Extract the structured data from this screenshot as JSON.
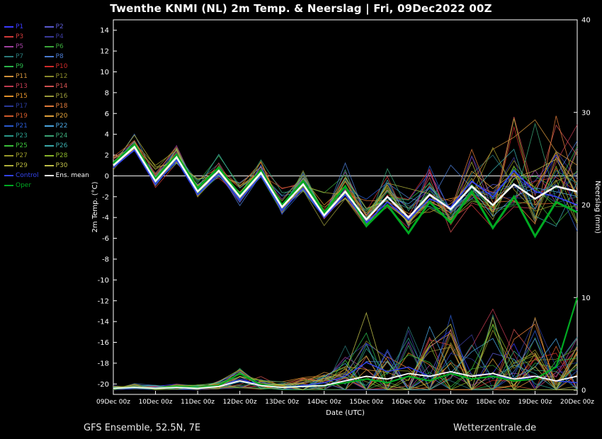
{
  "title": "Twenthe KNMI  (NL)  2m Temp. & Neerslag | Fri, 09Dec2022 00Z",
  "footer": {
    "left": "GFS Ensemble, 52.5N, 7E",
    "right": "Wetterzentrale.de"
  },
  "axes": {
    "temp_label": "2m Temp. (°C)",
    "precip_label": "Neerslag (mm)",
    "x_label": "Date (UTC)",
    "temp_ticks": [
      14,
      12,
      10,
      8,
      6,
      4,
      2,
      0,
      -2,
      -4,
      -6,
      -8,
      -10,
      -12,
      -14,
      -16,
      -18,
      -20
    ],
    "temp_range": [
      -21,
      15
    ],
    "precip_ticks": [
      40,
      30,
      20,
      10,
      0
    ],
    "precip_range": [
      0,
      40
    ],
    "x_tick_labels": [
      "09Dec 00z",
      "10Dec 00z",
      "11Dec 00z",
      "12Dec 00z",
      "13Dec 00z",
      "14Dec 00z",
      "15Dec 00z",
      "16Dec 00z",
      "17Dec 00z",
      "18Dec 00z",
      "19Dec 00z",
      "20Dec 00z"
    ],
    "zero_line_temp": 0
  },
  "legend": {
    "members": [
      {
        "label": "P1",
        "color": "#3a3aff"
      },
      {
        "label": "P2",
        "color": "#5a5ad0"
      },
      {
        "label": "P3",
        "color": "#d03a3a"
      },
      {
        "label": "P4",
        "color": "#3a3a9a"
      },
      {
        "label": "P5",
        "color": "#a040a0"
      },
      {
        "label": "P6",
        "color": "#3aa53a"
      },
      {
        "label": "P7",
        "color": "#2a7a7a"
      },
      {
        "label": "P8",
        "color": "#4a7ad0"
      },
      {
        "label": "P9",
        "color": "#2ab54a"
      },
      {
        "label": "P10",
        "color": "#d02a2a"
      },
      {
        "label": "P11",
        "color": "#d0903a"
      },
      {
        "label": "P12",
        "color": "#8a8a2a"
      },
      {
        "label": "P13",
        "color": "#c03a50"
      },
      {
        "label": "P14",
        "color": "#d05050"
      },
      {
        "label": "P15",
        "color": "#e0902a"
      },
      {
        "label": "P16",
        "color": "#9a9a3a"
      },
      {
        "label": "P17",
        "color": "#2a3a9a"
      },
      {
        "label": "P18",
        "color": "#e07a3a"
      },
      {
        "label": "P19",
        "color": "#d05a2a"
      },
      {
        "label": "P20",
        "color": "#e0a03a"
      },
      {
        "label": "P21",
        "color": "#2a5ad0"
      },
      {
        "label": "P22",
        "color": "#4aa5e0"
      },
      {
        "label": "P23",
        "color": "#2a9a8a"
      },
      {
        "label": "P24",
        "color": "#3aa575"
      },
      {
        "label": "P25",
        "color": "#3ac03a"
      },
      {
        "label": "P26",
        "color": "#3aaaaa"
      },
      {
        "label": "P27",
        "color": "#9a9a2a"
      },
      {
        "label": "P28",
        "color": "#8ab52a"
      },
      {
        "label": "P29",
        "color": "#b0b03a"
      },
      {
        "label": "P30",
        "color": "#c0c04a"
      }
    ],
    "control": {
      "label": "Control",
      "color": "#3344ee"
    },
    "ens_mean": {
      "label": "Ens. mean",
      "color": "#ffffff"
    },
    "oper": {
      "label": "Oper",
      "color": "#00aa22"
    }
  },
  "chart_data": {
    "type": "line",
    "title": "Twenthe KNMI (NL) 2m Temp. & Neerslag, GFS Ensemble run Fri 09Dec2022 00Z",
    "xlabel": "Date (UTC)",
    "ylabel_left": "2m Temp. (°C)",
    "ylabel_right": "Neerslag (mm)",
    "ylim_temp": [
      -20,
      14
    ],
    "ylim_precip": [
      0,
      40
    ],
    "x_times": [
      "09Dec 00z",
      "09Dec 12z",
      "10Dec 00z",
      "10Dec 12z",
      "11Dec 00z",
      "11Dec 12z",
      "12Dec 00z",
      "12Dec 12z",
      "13Dec 00z",
      "13Dec 12z",
      "14Dec 00z",
      "14Dec 12z",
      "15Dec 00z",
      "15Dec 12z",
      "16Dec 00z",
      "16Dec 12z",
      "17Dec 00z",
      "17Dec 12z",
      "18Dec 00z",
      "18Dec 12z",
      "19Dec 00z",
      "19Dec 12z",
      "20Dec 00z"
    ],
    "ens_mean_temp": [
      1.0,
      2.8,
      -0.5,
      1.8,
      -1.5,
      0.5,
      -2.0,
      0.3,
      -3.0,
      -0.8,
      -3.8,
      -1.5,
      -4.2,
      -2.0,
      -4.0,
      -1.8,
      -3.2,
      -1.0,
      -2.8,
      -0.8,
      -2.2,
      -1.0,
      -1.5
    ],
    "control_temp": [
      0.8,
      2.5,
      -0.8,
      1.5,
      -1.8,
      0.2,
      -2.3,
      0.0,
      -3.3,
      -1.2,
      -4.0,
      -1.8,
      -4.5,
      -2.5,
      -4.2,
      -2.2,
      -3.0,
      -0.5,
      -2.0,
      0.5,
      -1.5,
      -2.0,
      -2.8
    ],
    "oper_temp": [
      1.2,
      3.0,
      -0.3,
      2.0,
      -1.2,
      0.8,
      -1.8,
      0.5,
      -2.8,
      -0.5,
      -3.5,
      -1.0,
      -4.8,
      -2.8,
      -5.5,
      -2.5,
      -4.5,
      -1.5,
      -5.0,
      -2.0,
      -5.8,
      -2.5,
      -3.5
    ],
    "member_spread_temp": [
      0.8,
      0.8,
      1.0,
      1.0,
      1.2,
      1.2,
      1.3,
      1.3,
      1.5,
      1.5,
      1.6,
      1.7,
      1.8,
      2.0,
      2.5,
      2.8,
      3.2,
      3.5,
      4.0,
      4.5,
      5.5,
      6.0,
      6.5
    ],
    "ens_mean_precip": [
      0.2,
      0.3,
      0.2,
      0.3,
      0.2,
      0.4,
      1.0,
      0.5,
      0.3,
      0.4,
      0.5,
      1.0,
      1.5,
      1.2,
      1.8,
      1.5,
      2.0,
      1.5,
      1.8,
      1.2,
      1.5,
      1.0,
      1.5
    ],
    "control_precip": [
      0.2,
      0.2,
      0.3,
      0.3,
      0.2,
      0.4,
      1.2,
      0.5,
      0.3,
      0.5,
      0.8,
      1.5,
      3.0,
      2.0,
      2.5,
      1.5,
      2.0,
      1.5,
      1.8,
      1.0,
      1.5,
      1.0,
      0.8
    ],
    "oper_precip": [
      0.2,
      0.3,
      0.2,
      0.4,
      0.3,
      0.5,
      1.8,
      0.6,
      0.3,
      0.4,
      0.5,
      0.8,
      1.2,
      0.8,
      1.5,
      1.0,
      1.8,
      1.2,
      1.5,
      1.0,
      1.2,
      2.5,
      10.0
    ],
    "member_spread_precip": [
      0.3,
      0.3,
      0.3,
      0.4,
      0.4,
      0.5,
      1.5,
      0.8,
      0.5,
      0.8,
      1.5,
      3.0,
      5.0,
      4.0,
      5.0,
      4.0,
      5.0,
      4.5,
      5.0,
      4.0,
      4.5,
      3.5,
      4.5
    ]
  }
}
